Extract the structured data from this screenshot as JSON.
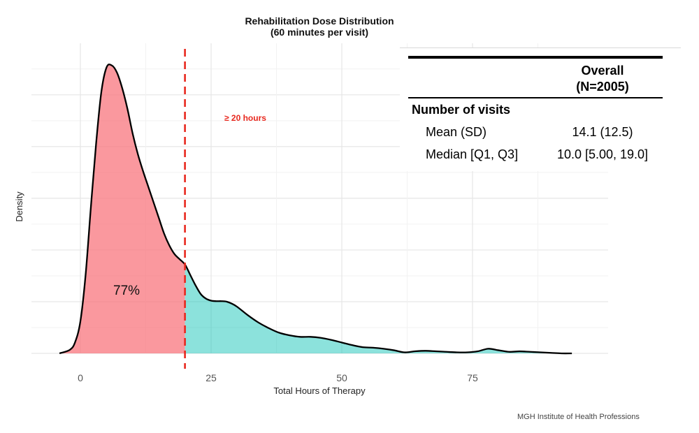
{
  "chart_data": {
    "type": "area",
    "title": "Rehabilitation Dose Distribution",
    "subtitle": "(60 minutes per visit)",
    "xlabel": "Total Hours of Therapy",
    "ylabel": "Density",
    "xlim": [
      -5,
      96
    ],
    "ylim": [
      0,
      0.057
    ],
    "x_ticks": [
      0,
      25,
      50,
      75
    ],
    "threshold": 20,
    "threshold_label": "≥ 20 hours",
    "below_percent_label": "77%",
    "colors": {
      "below": "#f8767d",
      "above": "#00bfb2",
      "threshold": "#e8281e",
      "curve": "#000000"
    },
    "density": [
      [
        -4,
        0.0
      ],
      [
        -2,
        0.0007
      ],
      [
        -1,
        0.0022
      ],
      [
        0,
        0.0062
      ],
      [
        1,
        0.0152
      ],
      [
        2,
        0.0282
      ],
      [
        3,
        0.0405
      ],
      [
        4,
        0.0505
      ],
      [
        5,
        0.0553
      ],
      [
        6,
        0.0557
      ],
      [
        7,
        0.0543
      ],
      [
        8,
        0.0513
      ],
      [
        9,
        0.0473
      ],
      [
        10,
        0.0425
      ],
      [
        11,
        0.0385
      ],
      [
        12,
        0.0352
      ],
      [
        13,
        0.0322
      ],
      [
        14,
        0.0292
      ],
      [
        15,
        0.0262
      ],
      [
        16,
        0.0232
      ],
      [
        17,
        0.0209
      ],
      [
        18,
        0.0192
      ],
      [
        19,
        0.0182
      ],
      [
        20,
        0.0172
      ],
      [
        21,
        0.0152
      ],
      [
        22,
        0.0132
      ],
      [
        23,
        0.0115
      ],
      [
        24,
        0.0106
      ],
      [
        25,
        0.0102
      ],
      [
        26,
        0.0101
      ],
      [
        27,
        0.0101
      ],
      [
        28,
        0.01
      ],
      [
        29,
        0.0096
      ],
      [
        30,
        0.009
      ],
      [
        32,
        0.0074
      ],
      [
        34,
        0.006
      ],
      [
        36,
        0.0049
      ],
      [
        38,
        0.004
      ],
      [
        40,
        0.0035
      ],
      [
        42,
        0.0032
      ],
      [
        44,
        0.0032
      ],
      [
        46,
        0.003
      ],
      [
        48,
        0.0026
      ],
      [
        50,
        0.0021
      ],
      [
        52,
        0.0016
      ],
      [
        54,
        0.0012
      ],
      [
        56,
        0.0011
      ],
      [
        58,
        0.0009
      ],
      [
        60,
        0.0006
      ],
      [
        62,
        0.0002
      ],
      [
        64,
        0.0004
      ],
      [
        66,
        0.0005
      ],
      [
        68,
        0.0004
      ],
      [
        70,
        0.0003
      ],
      [
        72,
        0.0002
      ],
      [
        74,
        0.0002
      ],
      [
        76,
        0.0004
      ],
      [
        78,
        0.0009
      ],
      [
        80,
        0.0006
      ],
      [
        82,
        0.0003
      ],
      [
        84,
        0.0004
      ],
      [
        86,
        0.0003
      ],
      [
        88,
        0.0002
      ],
      [
        90,
        0.0001
      ],
      [
        92,
        0.0
      ],
      [
        94,
        0.0
      ]
    ]
  },
  "stats_table": {
    "header_line1": "Overall",
    "header_line2": "(N=2005)",
    "section_label": "Number of visits",
    "rows": [
      {
        "label": "Mean (SD)",
        "value": "14.1 (12.5)"
      },
      {
        "label": "Median [Q1, Q3]",
        "value": "10.0 [5.00, 19.0]"
      }
    ]
  },
  "footer": "MGH Institute of Health Professions"
}
